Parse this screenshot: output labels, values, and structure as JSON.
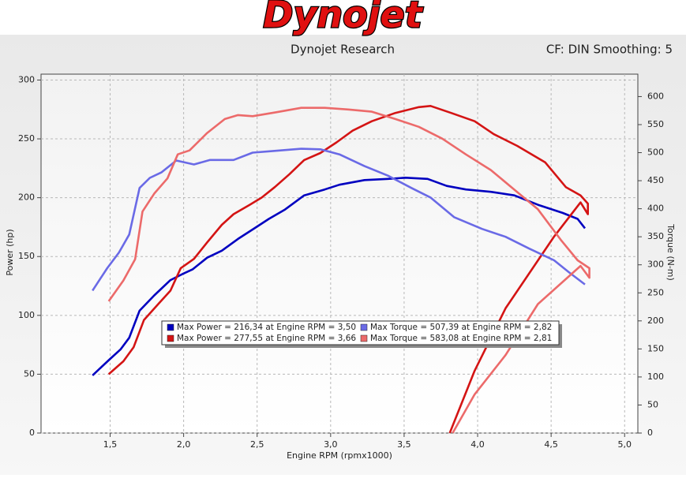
{
  "header": {
    "logo": "Dynojet",
    "title": "Dynojet Research",
    "info": "CF: DIN Smoothing: 5"
  },
  "chart_data": {
    "type": "line",
    "xlabel": "Engine RPM (rpmx1000)",
    "ylabel": "Power (hp)",
    "y2label": "Torque (N-m)",
    "xlim": [
      1.03,
      5.09
    ],
    "ylim": [
      0,
      305
    ],
    "y2lim": [
      0,
      640
    ],
    "xticks": [
      {
        "value": 1.5,
        "label": "1,5"
      },
      {
        "value": 2.0,
        "label": "2,0"
      },
      {
        "value": 2.5,
        "label": "2,5"
      },
      {
        "value": 3.0,
        "label": "3,0"
      },
      {
        "value": 3.5,
        "label": "3,5"
      },
      {
        "value": 4.0,
        "label": "4,0"
      },
      {
        "value": 4.5,
        "label": "4,5"
      },
      {
        "value": 5.0,
        "label": "5,0"
      }
    ],
    "yticks": [
      0,
      50,
      100,
      150,
      200,
      250,
      300
    ],
    "y2ticks": [
      0,
      50,
      100,
      150,
      200,
      250,
      300,
      350,
      400,
      450,
      500,
      550,
      600
    ],
    "grid": true,
    "legend": [
      {
        "label": "Max Power = 216,34 at Engine RPM = 3,50",
        "color": "#0000c0"
      },
      {
        "label": "Max Torque = 507,39 at Engine RPM = 2,82",
        "color": "#6a6ae6"
      },
      {
        "label": "Max Power = 277,55 at Engine RPM = 3,66",
        "color": "#d41414"
      },
      {
        "label": "Max Torque = 583,08 at Engine RPM = 2,81",
        "color": "#ec6a6a"
      }
    ],
    "series": [
      {
        "color": "#0000c0",
        "axis": "y",
        "x": [
          1.38,
          1.5,
          1.57,
          1.63,
          1.7,
          1.8,
          1.91,
          1.99,
          2.06,
          2.16,
          2.26,
          2.37,
          2.47,
          2.58,
          2.69,
          2.82,
          2.96,
          3.06,
          3.23,
          3.39,
          3.51,
          3.66,
          3.79,
          3.92,
          4.09,
          4.25,
          4.41,
          4.58,
          4.68,
          4.73
        ],
        "values": [
          49,
          63,
          71,
          81,
          104,
          117,
          130,
          135,
          139,
          149,
          155,
          165,
          173,
          182,
          190,
          202,
          207,
          211,
          215,
          216,
          217,
          216,
          210,
          207,
          205,
          202,
          194,
          187,
          182,
          174
        ]
      },
      {
        "color": "#d41414",
        "axis": "y",
        "x": [
          1.49,
          1.59,
          1.66,
          1.73,
          1.83,
          1.91,
          1.98,
          2.07,
          2.16,
          2.26,
          2.34,
          2.45,
          2.53,
          2.62,
          2.72,
          2.82,
          2.93,
          3.04,
          3.15,
          3.28,
          3.44,
          3.6,
          3.68,
          3.82,
          3.98,
          4.11,
          4.27,
          4.46,
          4.6,
          4.7,
          4.75,
          4.75,
          4.7,
          4.52,
          4.19,
          3.98,
          3.81
        ],
        "values": [
          50,
          61,
          73,
          96,
          110,
          121,
          140,
          148,
          162,
          177,
          186,
          194,
          200,
          209,
          220,
          232,
          238,
          247,
          257,
          265,
          272,
          277,
          278,
          272,
          265,
          254,
          244,
          230,
          209,
          202,
          195,
          186,
          196,
          167,
          106,
          53,
          0
        ]
      },
      {
        "color": "#6a6ae6",
        "axis": "y2",
        "x": [
          1.38,
          1.48,
          1.56,
          1.63,
          1.7,
          1.77,
          1.85,
          1.95,
          2.07,
          2.18,
          2.34,
          2.47,
          2.61,
          2.8,
          2.93,
          3.06,
          3.23,
          3.39,
          3.55,
          3.68,
          3.84,
          4.03,
          4.19,
          4.35,
          4.52,
          4.62,
          4.73
        ],
        "values": [
          254,
          294,
          322,
          354,
          437,
          455,
          465,
          486,
          479,
          487,
          487,
          500,
          503,
          507,
          506,
          497,
          476,
          459,
          437,
          420,
          385,
          364,
          350,
          329,
          308,
          287,
          265
        ]
      },
      {
        "color": "#ec6a6a",
        "axis": "y2",
        "x": [
          1.49,
          1.59,
          1.67,
          1.72,
          1.8,
          1.89,
          1.96,
          2.04,
          2.16,
          2.28,
          2.37,
          2.47,
          2.63,
          2.8,
          2.96,
          3.12,
          3.28,
          3.44,
          3.6,
          3.76,
          3.92,
          4.09,
          4.25,
          4.41,
          4.57,
          4.68,
          4.76,
          4.76,
          4.7,
          4.41,
          4.19,
          3.98,
          3.83
        ],
        "values": [
          235,
          272,
          310,
          395,
          427,
          454,
          497,
          504,
          535,
          560,
          567,
          565,
          572,
          580,
          580,
          577,
          573,
          560,
          546,
          525,
          497,
          469,
          434,
          399,
          343,
          308,
          294,
          277,
          298,
          230,
          139,
          69,
          0
        ]
      }
    ]
  }
}
